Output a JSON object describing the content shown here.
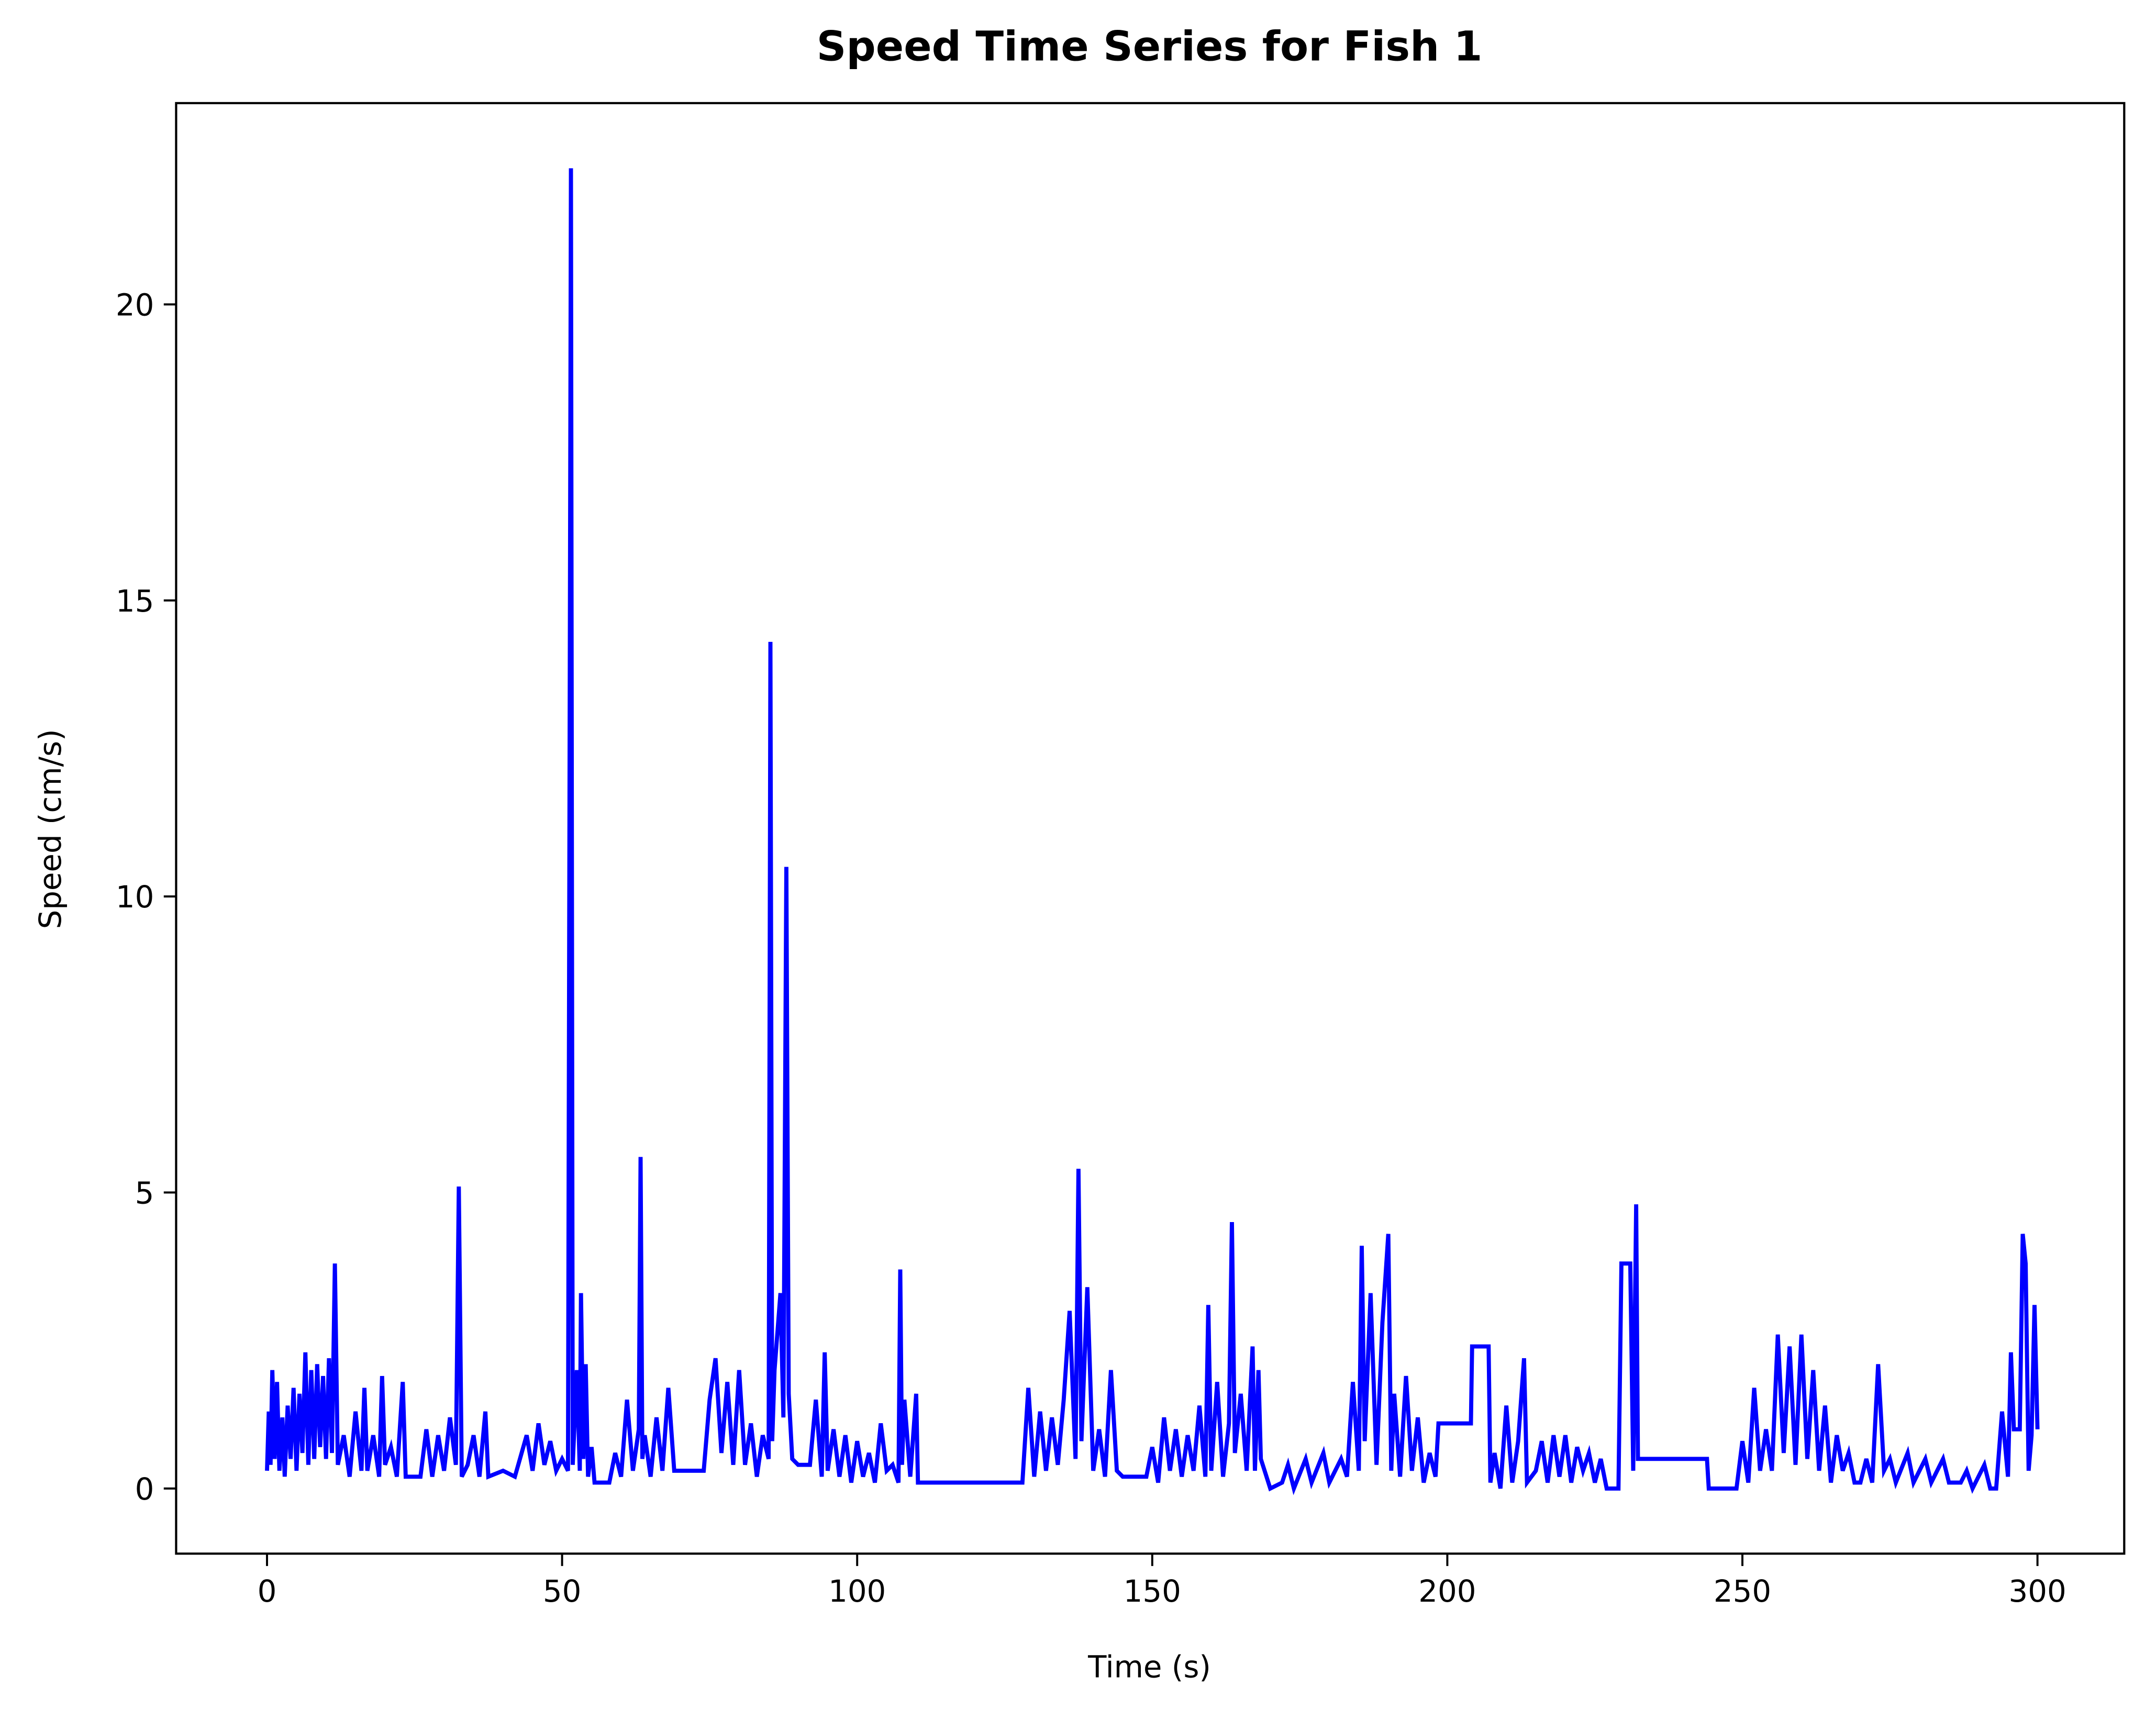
{
  "chart_data": {
    "type": "line",
    "title": "Speed Time Series for Fish 1",
    "x_label": "Time (s)",
    "y_label": "Speed (cm/s)",
    "color": "#0000ff",
    "grid": false,
    "xlim": [
      -15.4,
      314.7
    ],
    "ylim": [
      -1.1,
      23.4
    ],
    "xticks": [
      0,
      50,
      100,
      150,
      200,
      250,
      300
    ],
    "yticks": [
      0,
      5,
      10,
      15,
      20
    ],
    "x": [
      0,
      0.3,
      0.6,
      0.9,
      1.3,
      1.7,
      2.1,
      2.6,
      3.0,
      3.5,
      4,
      4.5,
      5,
      5.5,
      6,
      6.5,
      7,
      7.5,
      8,
      8.5,
      9,
      9.5,
      10,
      10.5,
      11,
      11.5,
      12,
      13,
      14,
      15,
      16,
      16.5,
      17,
      18,
      19,
      19.5,
      20,
      21,
      22,
      23,
      23.5,
      26,
      27,
      28,
      29,
      30,
      31,
      32,
      32.5,
      33,
      34,
      35,
      36,
      37,
      37.5,
      40,
      42,
      44,
      45,
      46,
      47,
      48,
      49,
      50,
      51,
      51.5,
      51.8,
      52.5,
      53,
      53.2,
      53.6,
      54,
      54.4,
      55,
      55.5,
      58,
      59,
      60,
      61,
      62,
      63,
      63.3,
      63.6,
      64,
      65,
      66,
      67,
      68,
      69,
      70,
      74,
      75,
      76,
      77,
      78,
      79,
      80,
      81,
      82,
      83,
      84,
      85,
      85.3,
      85.6,
      86,
      87,
      87.5,
      88,
      88.4,
      89,
      90,
      92,
      93,
      94,
      94.5,
      95,
      96,
      97,
      98,
      99,
      100,
      101,
      102,
      103,
      104,
      105,
      106,
      107,
      107.3,
      107.6,
      108,
      109,
      110,
      110.3,
      128,
      129,
      130,
      131,
      132,
      133,
      134,
      135,
      136,
      137,
      137.5,
      138,
      139,
      140,
      141,
      142,
      143,
      144,
      145,
      149,
      150,
      151,
      152,
      153,
      154,
      155,
      156,
      157,
      158,
      159,
      159.5,
      160,
      161,
      162,
      163,
      163.5,
      164,
      165,
      166,
      167,
      167.4,
      168,
      168.4,
      170,
      172,
      173,
      174,
      176,
      177,
      179,
      180,
      182,
      183,
      184,
      185,
      185.5,
      186,
      187,
      188,
      189,
      190,
      190.5,
      191,
      192,
      193,
      194,
      195,
      196,
      197,
      198,
      198.5,
      204,
      204.2,
      207,
      207.3,
      208,
      209,
      210,
      211,
      212,
      213,
      213.5,
      215,
      216,
      217,
      218,
      219,
      220,
      221,
      222,
      223,
      224,
      225,
      226,
      227,
      229,
      229.5,
      231,
      231.5,
      232,
      232.3,
      244,
      244.3,
      249,
      250,
      251,
      252,
      253,
      254,
      255,
      256,
      257,
      258,
      259,
      260,
      261,
      262,
      263,
      264,
      265,
      266,
      267,
      268,
      269,
      270,
      271,
      272,
      273,
      274,
      275,
      276,
      278,
      279,
      281,
      282,
      284,
      285,
      287,
      288,
      289,
      291,
      292,
      293,
      294,
      295,
      295.5,
      296,
      297,
      297.5,
      298,
      298.5,
      299,
      299.5,
      300
    ],
    "values": [
      0.3,
      1.3,
      0.4,
      2.0,
      0.5,
      1.8,
      0.3,
      1.2,
      0.2,
      1.4,
      0.5,
      1.7,
      0.3,
      1.6,
      0.6,
      2.3,
      0.4,
      2.0,
      0.5,
      2.1,
      0.7,
      1.9,
      0.5,
      2.2,
      0.6,
      3.8,
      0.4,
      0.9,
      0.2,
      1.3,
      0.3,
      1.7,
      0.3,
      0.9,
      0.2,
      1.9,
      0.4,
      0.7,
      0.2,
      1.8,
      0.2,
      0.2,
      1.0,
      0.2,
      0.9,
      0.3,
      1.2,
      0.4,
      5.1,
      0.2,
      0.4,
      0.9,
      0.2,
      1.3,
      0.2,
      0.3,
      0.2,
      0.9,
      0.3,
      1.1,
      0.4,
      0.8,
      0.3,
      0.5,
      0.3,
      22.3,
      0.4,
      2.0,
      0.3,
      3.3,
      0.5,
      2.1,
      0.2,
      0.7,
      0.1,
      0.1,
      0.6,
      0.2,
      1.5,
      0.3,
      1.0,
      5.6,
      0.5,
      0.9,
      0.2,
      1.2,
      0.3,
      1.7,
      0.3,
      0.3,
      0.3,
      1.5,
      2.2,
      0.6,
      1.8,
      0.4,
      2.0,
      0.4,
      1.1,
      0.2,
      0.9,
      0.5,
      14.3,
      0.8,
      2.0,
      3.3,
      1.2,
      10.5,
      1.6,
      0.5,
      0.4,
      0.4,
      1.5,
      0.2,
      2.3,
      0.3,
      1.0,
      0.2,
      0.9,
      0.1,
      0.8,
      0.2,
      0.6,
      0.1,
      1.1,
      0.3,
      0.4,
      0.1,
      3.7,
      0.4,
      1.5,
      0.2,
      1.6,
      0.1,
      0.1,
      1.7,
      0.2,
      1.3,
      0.3,
      1.2,
      0.4,
      1.5,
      3.0,
      0.5,
      5.4,
      0.8,
      3.4,
      0.3,
      1.0,
      0.2,
      2.0,
      0.3,
      0.2,
      0.2,
      0.7,
      0.1,
      1.2,
      0.3,
      1.0,
      0.2,
      0.9,
      0.3,
      1.4,
      0.2,
      3.1,
      0.3,
      1.8,
      0.2,
      1.1,
      4.5,
      0.6,
      1.6,
      0.3,
      2.4,
      0.3,
      2.0,
      0.5,
      0.0,
      0.1,
      0.4,
      0.0,
      0.5,
      0.1,
      0.6,
      0.1,
      0.5,
      0.2,
      1.8,
      0.3,
      4.1,
      0.8,
      3.3,
      0.4,
      2.8,
      4.3,
      0.3,
      1.6,
      0.2,
      1.9,
      0.3,
      1.2,
      0.1,
      0.6,
      0.2,
      1.1,
      1.1,
      2.4,
      2.4,
      0.1,
      0.6,
      0.0,
      1.4,
      0.1,
      0.8,
      2.2,
      0.1,
      0.3,
      0.8,
      0.1,
      0.9,
      0.2,
      0.9,
      0.1,
      0.7,
      0.3,
      0.6,
      0.1,
      0.5,
      0.0,
      0.0,
      3.8,
      3.8,
      0.3,
      4.8,
      0.5,
      0.5,
      0.0,
      0.0,
      0.8,
      0.1,
      1.7,
      0.3,
      1.0,
      0.3,
      2.6,
      0.6,
      2.4,
      0.4,
      2.6,
      0.5,
      2.0,
      0.3,
      1.4,
      0.1,
      0.9,
      0.3,
      0.6,
      0.1,
      0.1,
      0.5,
      0.1,
      2.1,
      0.3,
      0.5,
      0.1,
      0.6,
      0.1,
      0.5,
      0.1,
      0.5,
      0.1,
      0.1,
      0.3,
      0.0,
      0.4,
      0.0,
      0.0,
      1.3,
      0.2,
      2.3,
      1.0,
      1.0,
      4.3,
      3.8,
      0.3,
      0.9,
      3.1,
      1.0
    ]
  }
}
